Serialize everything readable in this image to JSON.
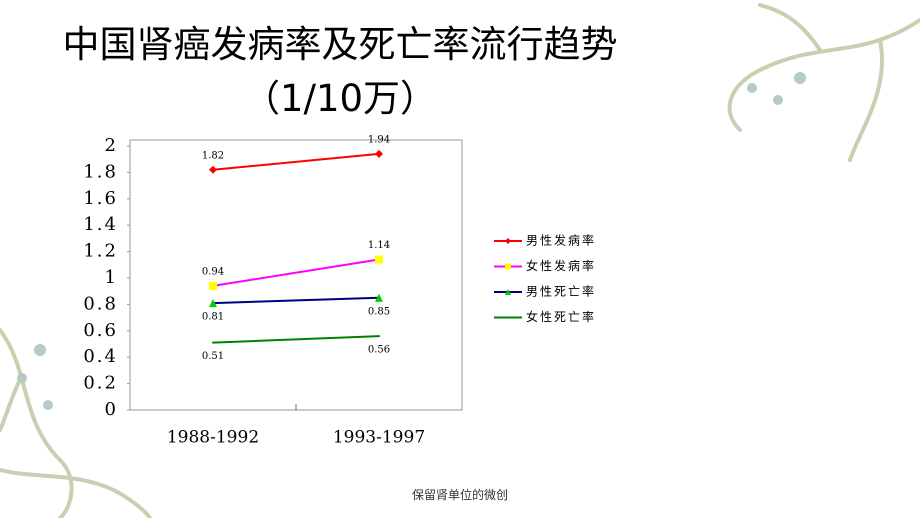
{
  "title": "中国肾癌发病率及死亡率流行趋势（1/10万）",
  "footer": "保留肾单位的微创",
  "chart_data": {
    "type": "line",
    "categories": [
      "1988-1992",
      "1993-1997"
    ],
    "series": [
      {
        "name": "男性发病率",
        "color": "#ff0000",
        "marker": "diamond",
        "marker_color": "#ff0000",
        "values": [
          1.82,
          1.94
        ]
      },
      {
        "name": "女性发病率",
        "color": "#ff00ff",
        "marker": "square",
        "marker_color": "#ffff00",
        "values": [
          0.94,
          1.14
        ]
      },
      {
        "name": "男性死亡率",
        "color": "#000080",
        "marker": "triangle",
        "marker_color": "#00cc00",
        "values": [
          0.81,
          0.85
        ]
      },
      {
        "name": "女性死亡率",
        "color": "#008000",
        "marker": "none",
        "marker_color": "#008000",
        "values": [
          0.51,
          0.56
        ]
      }
    ],
    "ylim": [
      0,
      2
    ],
    "yticks": [
      0,
      0.2,
      0.4,
      0.6,
      0.8,
      1,
      1.2,
      1.4,
      1.6,
      1.8,
      2
    ],
    "legend": "right"
  }
}
